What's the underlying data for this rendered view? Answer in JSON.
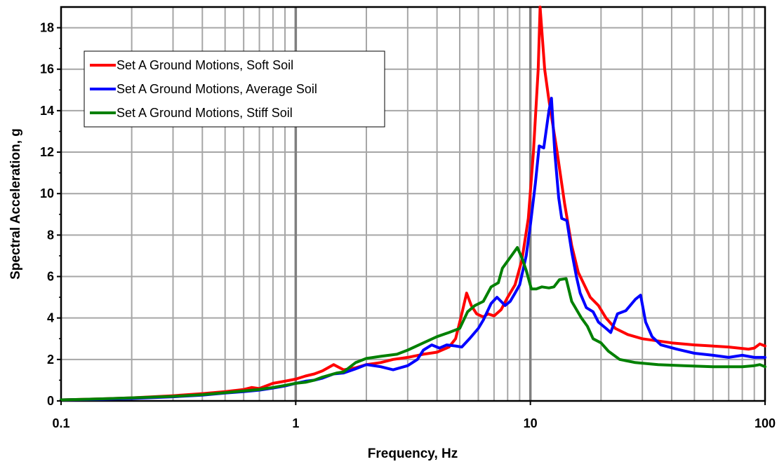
{
  "chart_data": {
    "type": "line",
    "xscale": "log",
    "xlabel": "Frequency, Hz",
    "ylabel": "Spectral Acceleration, g",
    "xlim": [
      0.1,
      100
    ],
    "ylim": [
      0,
      19
    ],
    "xticks": [
      0.1,
      1,
      10,
      100
    ],
    "xtick_labels": [
      "0.1",
      "1",
      "10",
      "100"
    ],
    "yticks": [
      0,
      2,
      4,
      6,
      8,
      10,
      12,
      14,
      16,
      18
    ],
    "ytick_labels": [
      "0",
      "2",
      "4",
      "6",
      "8",
      "10",
      "12",
      "14",
      "16",
      "18"
    ],
    "grid": true,
    "legend_position": "top-left",
    "series": [
      {
        "name": "Set A Ground Motions, Soft Soil",
        "color": "#ff0000",
        "points": [
          [
            0.1,
            0.05
          ],
          [
            0.15,
            0.1
          ],
          [
            0.2,
            0.15
          ],
          [
            0.3,
            0.25
          ],
          [
            0.4,
            0.35
          ],
          [
            0.5,
            0.45
          ],
          [
            0.6,
            0.55
          ],
          [
            0.65,
            0.65
          ],
          [
            0.7,
            0.6
          ],
          [
            0.8,
            0.85
          ],
          [
            0.9,
            0.95
          ],
          [
            1.0,
            1.05
          ],
          [
            1.1,
            1.2
          ],
          [
            1.2,
            1.3
          ],
          [
            1.3,
            1.45
          ],
          [
            1.45,
            1.75
          ],
          [
            1.6,
            1.5
          ],
          [
            1.8,
            1.6
          ],
          [
            2.0,
            1.75
          ],
          [
            2.3,
            1.85
          ],
          [
            2.6,
            2.0
          ],
          [
            3.0,
            2.1
          ],
          [
            3.5,
            2.25
          ],
          [
            4.0,
            2.35
          ],
          [
            4.5,
            2.6
          ],
          [
            4.8,
            3.0
          ],
          [
            5.1,
            4.2
          ],
          [
            5.35,
            5.2
          ],
          [
            5.6,
            4.6
          ],
          [
            5.9,
            4.2
          ],
          [
            6.3,
            4.05
          ],
          [
            6.6,
            4.2
          ],
          [
            7.0,
            4.1
          ],
          [
            7.5,
            4.4
          ],
          [
            8.0,
            5.0
          ],
          [
            8.6,
            5.6
          ],
          [
            9.2,
            6.8
          ],
          [
            9.8,
            8.8
          ],
          [
            10.3,
            12.0
          ],
          [
            10.8,
            16.0
          ],
          [
            11.0,
            19.0
          ],
          [
            11.5,
            16.0
          ],
          [
            12.0,
            14.5
          ],
          [
            13.0,
            12.0
          ],
          [
            14.0,
            9.5
          ],
          [
            15.0,
            7.5
          ],
          [
            16.0,
            6.2
          ],
          [
            18.0,
            5.0
          ],
          [
            19.5,
            4.6
          ],
          [
            21.0,
            4.0
          ],
          [
            23.0,
            3.5
          ],
          [
            26.0,
            3.2
          ],
          [
            30.0,
            3.0
          ],
          [
            40.0,
            2.8
          ],
          [
            50.0,
            2.7
          ],
          [
            70.0,
            2.6
          ],
          [
            85.0,
            2.5
          ],
          [
            90.0,
            2.55
          ],
          [
            95.0,
            2.75
          ],
          [
            100.0,
            2.65
          ]
        ]
      },
      {
        "name": "Set A Ground Motions, Average Soil",
        "color": "#0000ff",
        "points": [
          [
            0.1,
            0.05
          ],
          [
            0.15,
            0.08
          ],
          [
            0.2,
            0.12
          ],
          [
            0.3,
            0.2
          ],
          [
            0.4,
            0.28
          ],
          [
            0.5,
            0.38
          ],
          [
            0.6,
            0.45
          ],
          [
            0.7,
            0.52
          ],
          [
            0.8,
            0.62
          ],
          [
            0.9,
            0.72
          ],
          [
            1.0,
            0.85
          ],
          [
            1.1,
            0.95
          ],
          [
            1.2,
            1.0
          ],
          [
            1.3,
            1.1
          ],
          [
            1.45,
            1.3
          ],
          [
            1.6,
            1.35
          ],
          [
            1.8,
            1.55
          ],
          [
            2.0,
            1.75
          ],
          [
            2.3,
            1.65
          ],
          [
            2.6,
            1.5
          ],
          [
            3.0,
            1.7
          ],
          [
            3.3,
            2.0
          ],
          [
            3.5,
            2.45
          ],
          [
            3.8,
            2.7
          ],
          [
            4.1,
            2.55
          ],
          [
            4.4,
            2.7
          ],
          [
            4.8,
            2.65
          ],
          [
            5.1,
            2.6
          ],
          [
            5.5,
            3.0
          ],
          [
            6.0,
            3.5
          ],
          [
            6.3,
            3.9
          ],
          [
            6.8,
            4.7
          ],
          [
            7.2,
            5.0
          ],
          [
            7.5,
            4.8
          ],
          [
            7.8,
            4.6
          ],
          [
            8.2,
            4.8
          ],
          [
            8.6,
            5.2
          ],
          [
            9.0,
            5.6
          ],
          [
            9.6,
            7.0
          ],
          [
            10.0,
            8.5
          ],
          [
            10.5,
            10.5
          ],
          [
            10.9,
            12.3
          ],
          [
            11.4,
            12.2
          ],
          [
            12.0,
            14.0
          ],
          [
            12.3,
            14.6
          ],
          [
            12.7,
            12.0
          ],
          [
            13.2,
            9.8
          ],
          [
            13.6,
            8.8
          ],
          [
            14.3,
            8.7
          ],
          [
            15.0,
            7.2
          ],
          [
            15.7,
            6.0
          ],
          [
            16.3,
            5.2
          ],
          [
            17.3,
            4.5
          ],
          [
            18.5,
            4.3
          ],
          [
            19.5,
            3.8
          ],
          [
            21.0,
            3.5
          ],
          [
            22.0,
            3.3
          ],
          [
            23.5,
            4.2
          ],
          [
            25.5,
            4.35
          ],
          [
            28.0,
            4.9
          ],
          [
            29.5,
            5.1
          ],
          [
            31.0,
            3.8
          ],
          [
            33.0,
            3.1
          ],
          [
            36.0,
            2.7
          ],
          [
            42.0,
            2.5
          ],
          [
            50.0,
            2.3
          ],
          [
            60.0,
            2.2
          ],
          [
            70.0,
            2.1
          ],
          [
            80.0,
            2.2
          ],
          [
            90.0,
            2.1
          ],
          [
            100.0,
            2.1
          ]
        ]
      },
      {
        "name": "Set A Ground Motions, Stiff Soil",
        "color": "#008000",
        "points": [
          [
            0.1,
            0.05
          ],
          [
            0.15,
            0.1
          ],
          [
            0.2,
            0.15
          ],
          [
            0.3,
            0.22
          ],
          [
            0.4,
            0.3
          ],
          [
            0.5,
            0.4
          ],
          [
            0.6,
            0.48
          ],
          [
            0.7,
            0.55
          ],
          [
            0.8,
            0.65
          ],
          [
            0.9,
            0.75
          ],
          [
            1.0,
            0.85
          ],
          [
            1.1,
            0.9
          ],
          [
            1.2,
            1.0
          ],
          [
            1.3,
            1.15
          ],
          [
            1.5,
            1.35
          ],
          [
            1.6,
            1.4
          ],
          [
            1.8,
            1.85
          ],
          [
            2.0,
            2.05
          ],
          [
            2.3,
            2.15
          ],
          [
            2.7,
            2.25
          ],
          [
            3.0,
            2.45
          ],
          [
            3.5,
            2.8
          ],
          [
            4.0,
            3.1
          ],
          [
            4.5,
            3.3
          ],
          [
            5.0,
            3.5
          ],
          [
            5.4,
            4.3
          ],
          [
            5.8,
            4.6
          ],
          [
            6.3,
            4.8
          ],
          [
            6.8,
            5.5
          ],
          [
            7.3,
            5.7
          ],
          [
            7.6,
            6.4
          ],
          [
            8.3,
            7.0
          ],
          [
            8.8,
            7.4
          ],
          [
            9.2,
            6.9
          ],
          [
            9.6,
            6.3
          ],
          [
            10.1,
            5.4
          ],
          [
            10.6,
            5.4
          ],
          [
            11.2,
            5.5
          ],
          [
            12.0,
            5.45
          ],
          [
            12.6,
            5.5
          ],
          [
            13.3,
            5.85
          ],
          [
            14.2,
            5.9
          ],
          [
            15.0,
            4.8
          ],
          [
            16.5,
            4.0
          ],
          [
            17.5,
            3.6
          ],
          [
            18.5,
            3.0
          ],
          [
            20.0,
            2.8
          ],
          [
            21.5,
            2.4
          ],
          [
            24.0,
            2.0
          ],
          [
            28.0,
            1.85
          ],
          [
            35.0,
            1.75
          ],
          [
            45.0,
            1.7
          ],
          [
            60.0,
            1.65
          ],
          [
            80.0,
            1.65
          ],
          [
            90.0,
            1.7
          ],
          [
            95.0,
            1.75
          ],
          [
            100.0,
            1.65
          ]
        ]
      }
    ]
  }
}
